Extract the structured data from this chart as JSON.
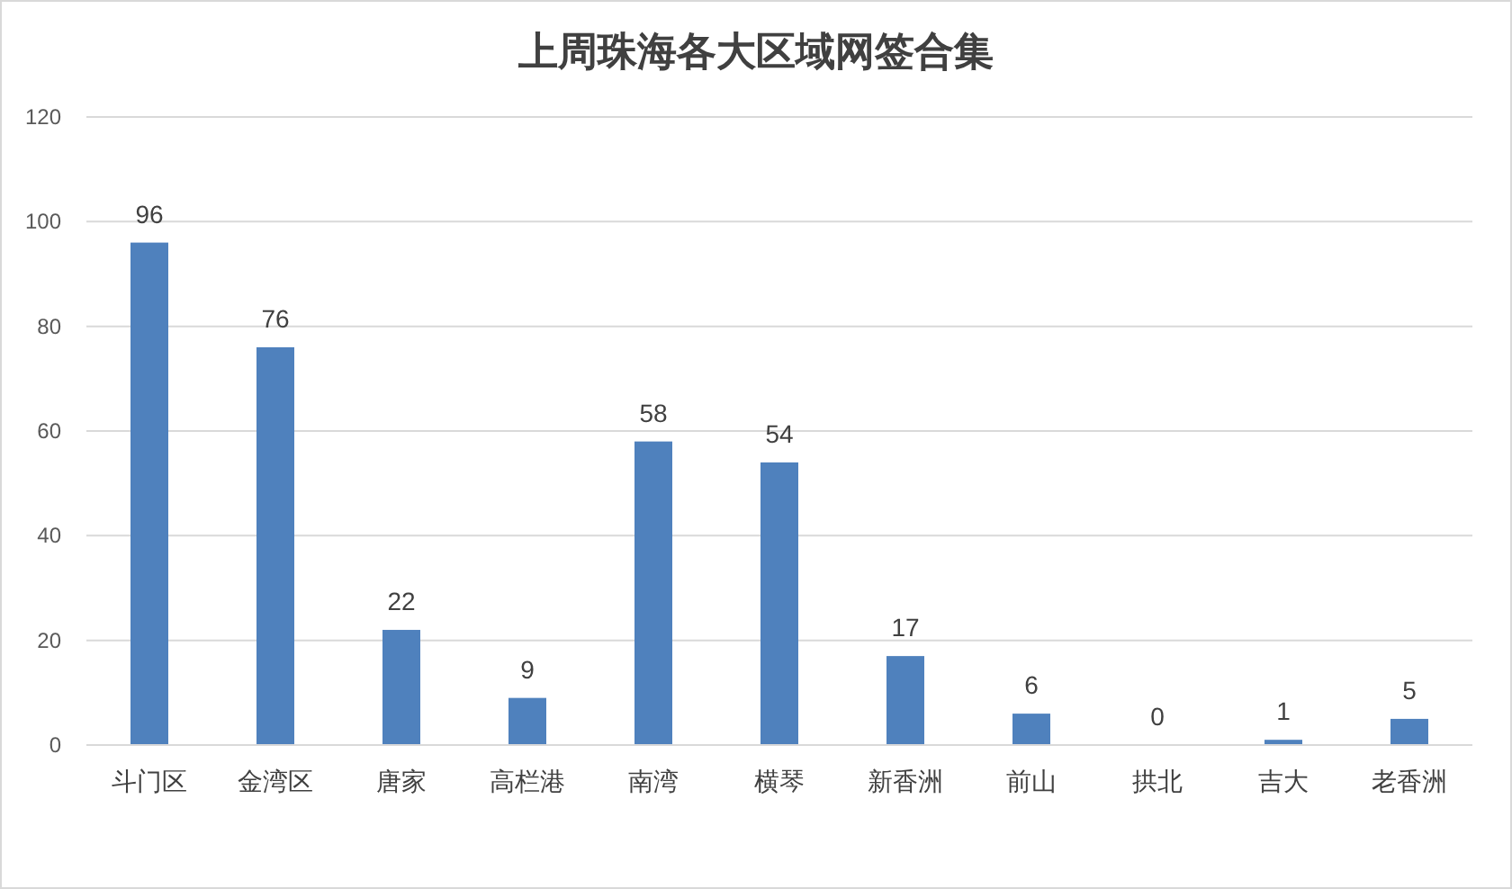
{
  "chart_data": {
    "type": "bar",
    "title": "上周珠海各大区域网签合集",
    "categories": [
      "斗门区",
      "金湾区",
      "唐家",
      "高栏港",
      "南湾",
      "横琴",
      "新香洲",
      "前山",
      "拱北",
      "吉大",
      "老香洲"
    ],
    "values": [
      96,
      76,
      22,
      9,
      58,
      54,
      17,
      6,
      0,
      1,
      5
    ],
    "color": "#4f81bd",
    "ylim": [
      0,
      120
    ],
    "yticks": [
      0,
      20,
      40,
      60,
      80,
      100,
      120
    ],
    "grid": "y",
    "data_labels": true
  }
}
